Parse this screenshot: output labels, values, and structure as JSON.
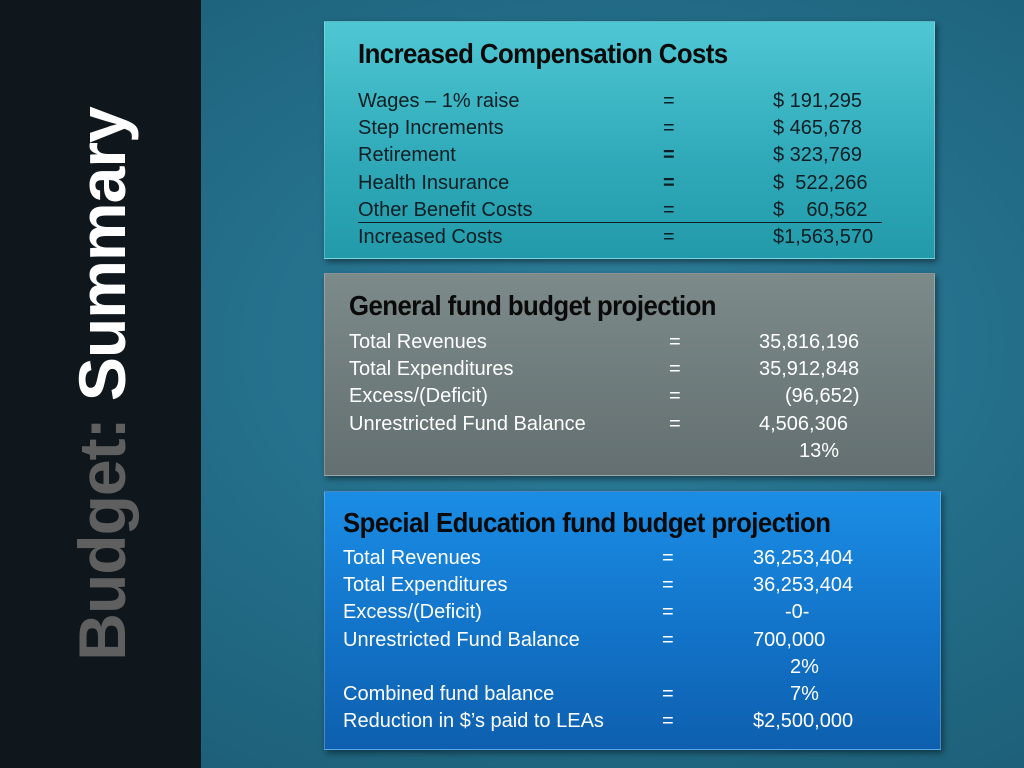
{
  "slide": {
    "title_part1": "Budget:",
    "title_part2": "Summary"
  },
  "compensation": {
    "title": "Increased Compensation Costs",
    "rows": [
      {
        "label": "Wages – 1% raise",
        "eq": "=",
        "value": "$ 191,295"
      },
      {
        "label": "Step Increments",
        "eq": "=",
        "value": "$ 465,678"
      },
      {
        "label": "Retirement",
        "eq": "=",
        "value": "$ 323,769"
      },
      {
        "label": "Health Insurance",
        "eq": "=",
        "value": "$  522,266"
      },
      {
        "label": "Other Benefit Costs",
        "eq": "=",
        "value": "$    60,562"
      },
      {
        "label": "Increased Costs",
        "eq": "=",
        "value": "$1,563,570"
      }
    ]
  },
  "general_fund": {
    "title": "General fund budget projection",
    "rows": [
      {
        "label": "Total Revenues",
        "eq": "=",
        "value": "35,816,196"
      },
      {
        "label": "Total Expenditures",
        "eq": "=",
        "value": "35,912,848"
      },
      {
        "label": "Excess/(Deficit)",
        "eq": "=",
        "value": "(96,652)"
      },
      {
        "label": "Unrestricted Fund Balance",
        "eq": "=",
        "value": "4,506,306"
      }
    ],
    "percent": "13%"
  },
  "special_ed": {
    "title": "Special Education fund budget projection",
    "rows": [
      {
        "label": "Total Revenues",
        "eq": "=",
        "value": "36,253,404"
      },
      {
        "label": "Total Expenditures",
        "eq": "=",
        "value": "36,253,404"
      },
      {
        "label": "Excess/(Deficit)",
        "eq": "=",
        "value": "-0-"
      },
      {
        "label": "Unrestricted Fund Balance",
        "eq": "=",
        "value": "700,000"
      }
    ],
    "percent": "2%",
    "rows2": [
      {
        "label": "Combined fund balance",
        "eq": "=",
        "value": "7%"
      },
      {
        "label": "Reduction in $’s paid to LEAs",
        "eq": "=",
        "value": "$2,500,000"
      }
    ]
  }
}
